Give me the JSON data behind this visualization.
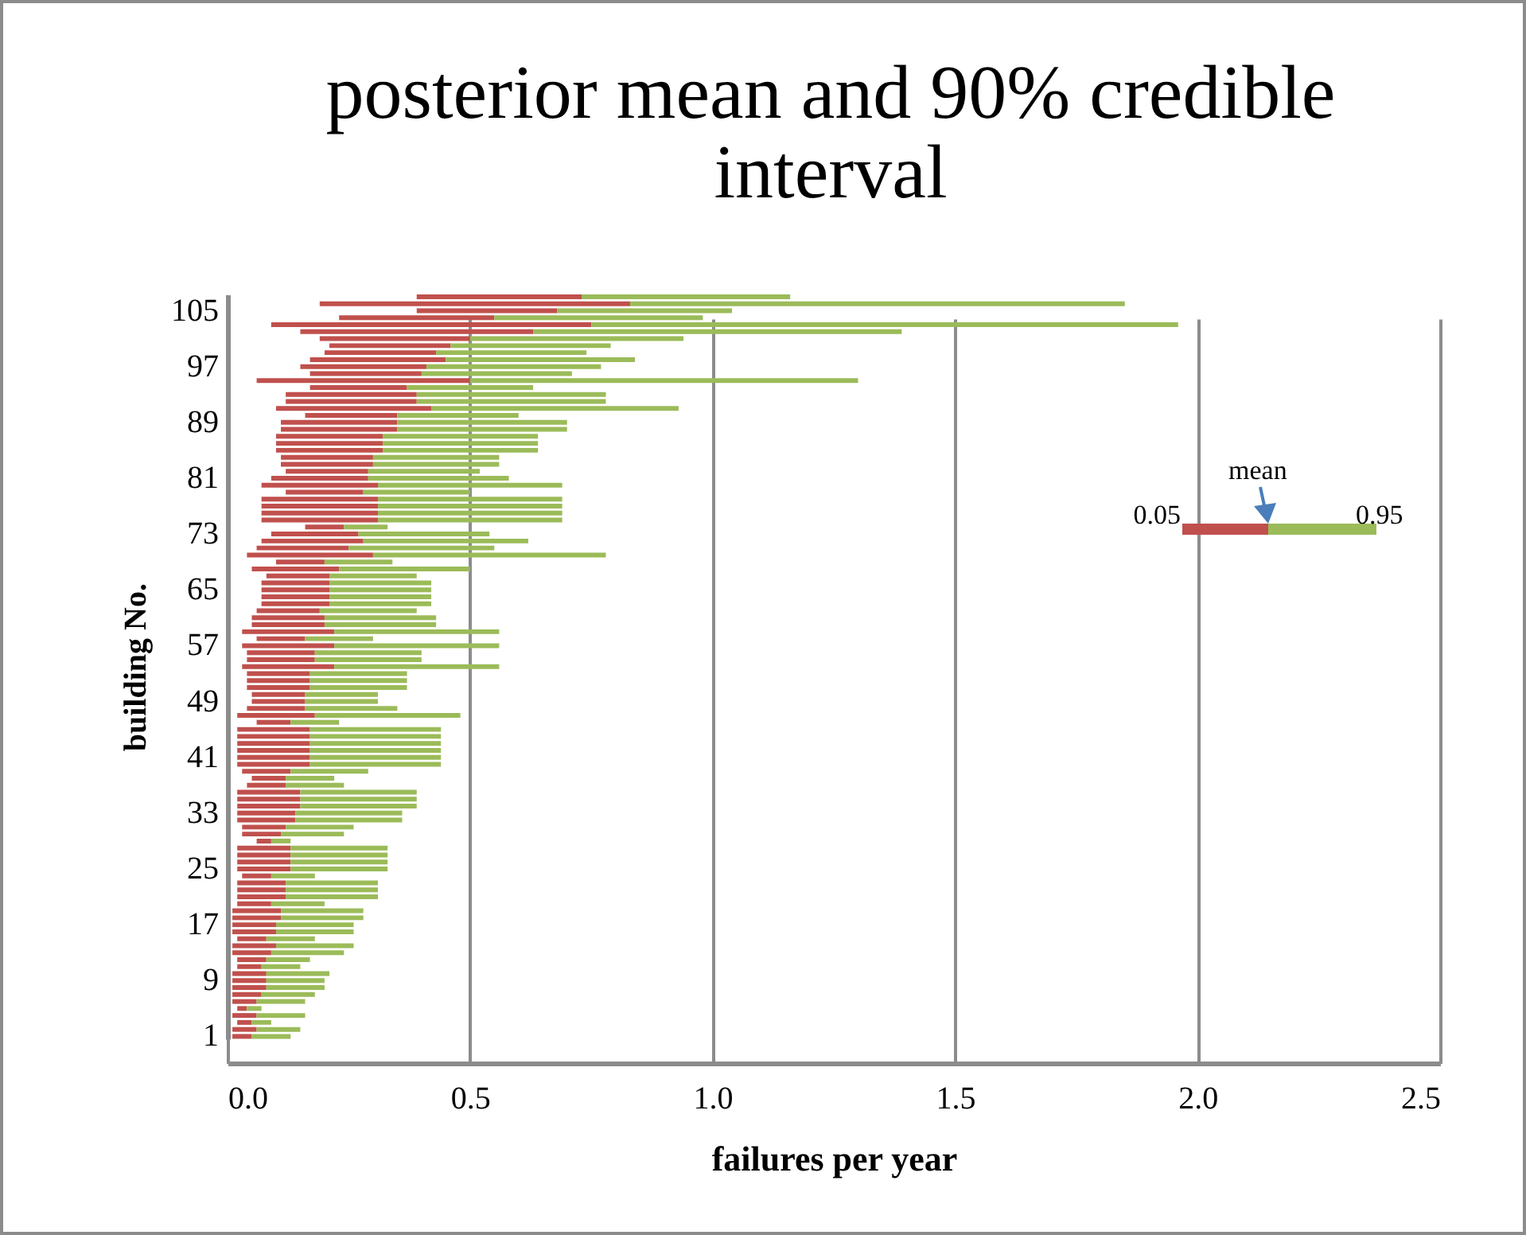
{
  "chart_data": {
    "type": "bar",
    "orientation": "horizontal",
    "title": "posterior mean and 90% credible interval",
    "xlabel": "failures per year",
    "ylabel": "building No.",
    "categories": [
      null,
      null,
      "105",
      null,
      null,
      null,
      null,
      null,
      null,
      null,
      "97",
      null,
      null,
      null,
      null,
      null,
      null,
      null,
      "89",
      null,
      null,
      null,
      null,
      null,
      null,
      null,
      "81",
      null,
      null,
      null,
      null,
      null,
      null,
      null,
      "73",
      null,
      null,
      null,
      null,
      null,
      null,
      null,
      "65",
      null,
      null,
      null,
      null,
      null,
      null,
      null,
      "57",
      null,
      null,
      null,
      null,
      null,
      null,
      null,
      "49",
      null,
      null,
      null,
      null,
      null,
      null,
      null,
      "41",
      null,
      null,
      null,
      null,
      null,
      null,
      null,
      "33",
      null,
      null,
      null,
      null,
      null,
      null,
      null,
      "25",
      null,
      null,
      null,
      null,
      null,
      null,
      null,
      "17",
      null,
      null,
      null,
      null,
      null,
      null,
      null,
      "9",
      null,
      null,
      null,
      null,
      null,
      null,
      null,
      "1"
    ],
    "series": [
      {
        "color": "#c0504d",
        "base": [
          0.39,
          0.19,
          0.39,
          0.23,
          0.09,
          0.15,
          0.19,
          0.21,
          0.2,
          0.17,
          0.15,
          0.17,
          0.06,
          0.17,
          0.12,
          0.12,
          0.1,
          0.16,
          0.11,
          0.11,
          0.1,
          0.1,
          0.1,
          0.11,
          0.11,
          0.12,
          0.09,
          0.07,
          0.12,
          0.07,
          0.07,
          0.07,
          0.07,
          0.16,
          0.09,
          0.07,
          0.06,
          0.04,
          0.1,
          0.05,
          0.08,
          0.07,
          0.07,
          0.07,
          0.07,
          0.06,
          0.05,
          0.05,
          0.03,
          0.06,
          0.03,
          0.04,
          0.04,
          0.03,
          0.04,
          0.04,
          0.04,
          0.05,
          0.05,
          0.04,
          0.02,
          0.06,
          0.02,
          0.02,
          0.02,
          0.02,
          0.02,
          0.02,
          0.03,
          0.05,
          0.04,
          0.02,
          0.02,
          0.02,
          0.02,
          0.02,
          0.03,
          0.03,
          0.06,
          0.02,
          0.02,
          0.02,
          0.02,
          0.03,
          0.02,
          0.02,
          0.02,
          0.02,
          0.01,
          0.01,
          0.01,
          0.01,
          0.02,
          0.01,
          0.01,
          0.02,
          0.02,
          0.01,
          0.01,
          0.01,
          0.01,
          0.01,
          0.02,
          0.01,
          0.02,
          0.01,
          0.01
        ],
        "values": [
          0.34,
          0.64,
          0.29,
          0.32,
          0.66,
          0.48,
          0.31,
          0.25,
          0.23,
          0.28,
          0.26,
          0.23,
          0.44,
          0.2,
          0.27,
          0.27,
          0.32,
          0.19,
          0.24,
          0.24,
          0.22,
          0.22,
          0.22,
          0.19,
          0.19,
          0.17,
          0.2,
          0.24,
          0.16,
          0.24,
          0.24,
          0.24,
          0.24,
          0.08,
          0.18,
          0.21,
          0.19,
          0.26,
          0.1,
          0.18,
          0.13,
          0.14,
          0.14,
          0.14,
          0.14,
          0.13,
          0.15,
          0.15,
          0.19,
          0.1,
          0.19,
          0.14,
          0.14,
          0.19,
          0.13,
          0.13,
          0.13,
          0.11,
          0.11,
          0.12,
          0.16,
          0.07,
          0.15,
          0.15,
          0.15,
          0.15,
          0.15,
          0.15,
          0.1,
          0.07,
          0.08,
          0.13,
          0.13,
          0.13,
          0.12,
          0.12,
          0.09,
          0.08,
          0.03,
          0.11,
          0.11,
          0.11,
          0.11,
          0.06,
          0.1,
          0.1,
          0.1,
          0.07,
          0.1,
          0.1,
          0.09,
          0.09,
          0.06,
          0.09,
          0.08,
          0.06,
          0.05,
          0.07,
          0.07,
          0.07,
          0.06,
          0.05,
          0.02,
          0.05,
          0.03,
          0.05,
          0.04
        ]
      },
      {
        "color": "#9bbb59",
        "base": [
          0.73,
          0.83,
          0.68,
          0.55,
          0.75,
          0.63,
          0.5,
          0.46,
          0.43,
          0.45,
          0.41,
          0.4,
          0.5,
          0.37,
          0.39,
          0.39,
          0.42,
          0.35,
          0.35,
          0.35,
          0.32,
          0.32,
          0.32,
          0.3,
          0.3,
          0.29,
          0.29,
          0.31,
          0.28,
          0.31,
          0.31,
          0.31,
          0.31,
          0.24,
          0.27,
          0.28,
          0.25,
          0.3,
          0.2,
          0.23,
          0.21,
          0.21,
          0.21,
          0.21,
          0.21,
          0.19,
          0.2,
          0.2,
          0.22,
          0.16,
          0.22,
          0.18,
          0.18,
          0.22,
          0.17,
          0.17,
          0.17,
          0.16,
          0.16,
          0.16,
          0.18,
          0.13,
          0.17,
          0.17,
          0.17,
          0.17,
          0.17,
          0.17,
          0.13,
          0.12,
          0.12,
          0.15,
          0.15,
          0.15,
          0.14,
          0.14,
          0.12,
          0.11,
          0.09,
          0.13,
          0.13,
          0.13,
          0.13,
          0.09,
          0.12,
          0.12,
          0.12,
          0.09,
          0.11,
          0.11,
          0.1,
          0.1,
          0.08,
          0.1,
          0.09,
          0.08,
          0.07,
          0.08,
          0.08,
          0.08,
          0.07,
          0.06,
          0.04,
          0.06,
          0.05,
          0.06,
          0.05
        ],
        "values": [
          0.43,
          1.02,
          0.36,
          0.43,
          1.21,
          0.76,
          0.44,
          0.33,
          0.31,
          0.39,
          0.36,
          0.31,
          0.8,
          0.26,
          0.39,
          0.39,
          0.51,
          0.25,
          0.35,
          0.35,
          0.32,
          0.32,
          0.32,
          0.26,
          0.26,
          0.23,
          0.29,
          0.38,
          0.22,
          0.38,
          0.38,
          0.38,
          0.38,
          0.09,
          0.27,
          0.34,
          0.3,
          0.48,
          0.14,
          0.27,
          0.18,
          0.21,
          0.21,
          0.21,
          0.21,
          0.2,
          0.23,
          0.23,
          0.34,
          0.14,
          0.34,
          0.22,
          0.22,
          0.34,
          0.2,
          0.2,
          0.2,
          0.15,
          0.15,
          0.19,
          0.3,
          0.1,
          0.27,
          0.27,
          0.27,
          0.27,
          0.27,
          0.27,
          0.16,
          0.1,
          0.12,
          0.24,
          0.24,
          0.24,
          0.22,
          0.22,
          0.14,
          0.13,
          0.04,
          0.2,
          0.2,
          0.2,
          0.2,
          0.09,
          0.19,
          0.19,
          0.19,
          0.11,
          0.17,
          0.17,
          0.16,
          0.16,
          0.1,
          0.16,
          0.15,
          0.09,
          0.08,
          0.13,
          0.12,
          0.12,
          0.11,
          0.1,
          0.03,
          0.1,
          0.04,
          0.09,
          0.08
        ]
      }
    ],
    "xlim": [
      0,
      2.5
    ],
    "xticks": [
      {
        "value": 0,
        "label": "0.0"
      },
      {
        "value": 0.5,
        "label": "0.5"
      },
      {
        "value": 1,
        "label": "1.0"
      },
      {
        "value": 1.5,
        "label": "1.5"
      },
      {
        "value": 2,
        "label": "2.0"
      },
      {
        "value": 2.5,
        "label": "2.5"
      }
    ],
    "grid": "x",
    "annotations": [
      "0.05",
      "mean",
      "0.95"
    ]
  }
}
